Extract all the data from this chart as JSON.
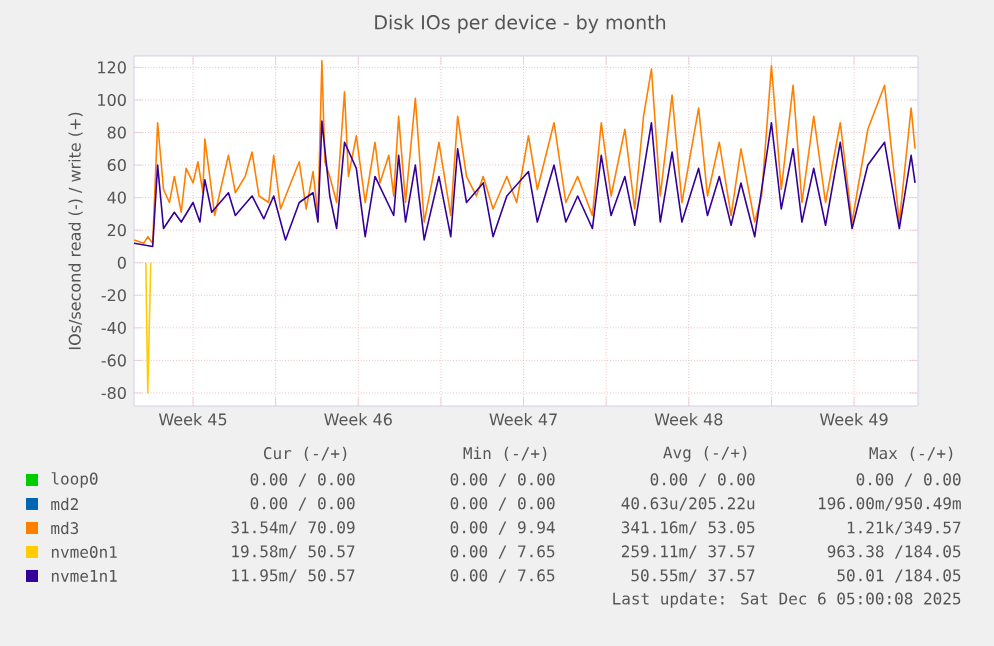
{
  "chart_data": {
    "type": "line",
    "title": "Disk IOs per device - by month",
    "ylabel": "IOs/second read (-) / write (+)",
    "xlim": [
      "2025-11-04T00:00",
      "2025-12-07T05:00"
    ],
    "ylim": [
      -88,
      127
    ],
    "xticks": [
      {
        "value": "2025-11-06T12:00",
        "label": "Week 45"
      },
      {
        "value": "2025-11-10",
        "label": null
      },
      {
        "value": "2025-11-13T12:00",
        "label": "Week 46"
      },
      {
        "value": "2025-11-17",
        "label": null
      },
      {
        "value": "2025-11-20T12:00",
        "label": "Week 47"
      },
      {
        "value": "2025-11-24",
        "label": null
      },
      {
        "value": "2025-11-27T12:00",
        "label": "Week 48"
      },
      {
        "value": "2025-12-01",
        "label": null
      },
      {
        "value": "2025-12-04T12:00",
        "label": "Week 49"
      }
    ],
    "yticks": [
      -80,
      -60,
      -40,
      -20,
      0,
      20,
      40,
      60,
      80,
      100,
      120
    ],
    "grid": true,
    "legend": "bottom",
    "series": [
      {
        "name": "loop0",
        "color": "#00cc00"
      },
      {
        "name": "md2",
        "color": "#0066b3"
      },
      {
        "name": "md3",
        "color": "#ff8000",
        "x": [
          "2025-11-04T00:00",
          "2025-11-04T10:00",
          "2025-11-04T14:00",
          "2025-11-04T19:00",
          "2025-11-05T00:00",
          "2025-11-05T06:00",
          "2025-11-05T12:00",
          "2025-11-05T17:00",
          "2025-11-06T00:00",
          "2025-11-06T05:00",
          "2025-11-06T12:00",
          "2025-11-06T17:00",
          "2025-11-06T22:00",
          "2025-11-07T00:00",
          "2025-11-07T05:00",
          "2025-11-07T10:00",
          "2025-11-07T16:00",
          "2025-11-08T00:00",
          "2025-11-08T07:00",
          "2025-11-08T17:00",
          "2025-11-09T00:00",
          "2025-11-09T07:00",
          "2025-11-09T17:00",
          "2025-11-09T22:00",
          "2025-11-10T05:00",
          "2025-11-10T14:00",
          "2025-11-11T00:00",
          "2025-11-11T07:00",
          "2025-11-11T14:00",
          "2025-11-11T19:00",
          "2025-11-11T23:00",
          "2025-11-12T02:00",
          "2025-11-12T07:00",
          "2025-11-12T14:00",
          "2025-11-12T22:00",
          "2025-11-13T02:00",
          "2025-11-13T10:00",
          "2025-11-13T19:00",
          "2025-11-14T05:00",
          "2025-11-14T10:00",
          "2025-11-14T19:00",
          "2025-11-15T00:00",
          "2025-11-15T05:00",
          "2025-11-15T12:00",
          "2025-11-15T22:00",
          "2025-11-16T07:00",
          "2025-11-16T16:00",
          "2025-11-16T22:00",
          "2025-11-17T10:00",
          "2025-11-17T17:00",
          "2025-11-18T02:00",
          "2025-11-18T12:00",
          "2025-11-18T19:00",
          "2025-11-19T05:00",
          "2025-11-19T19:00",
          "2025-11-20T05:00",
          "2025-11-20T17:00",
          "2025-11-21T02:00",
          "2025-11-21T19:00",
          "2025-11-22T07:00",
          "2025-11-22T19:00",
          "2025-11-23T10:00",
          "2025-11-23T19:00",
          "2025-11-24T05:00",
          "2025-11-24T19:00",
          "2025-11-25T05:00",
          "2025-11-25T14:00",
          "2025-11-25T22:00",
          "2025-11-26T07:00",
          "2025-11-26T19:00",
          "2025-11-27T05:00",
          "2025-11-27T22:00",
          "2025-11-28T07:00",
          "2025-11-28T19:00",
          "2025-11-29T07:00",
          "2025-11-29T17:00",
          "2025-11-30T07:00",
          "2025-11-30T14:00",
          "2025-12-01T00:00",
          "2025-12-01T10:00",
          "2025-12-01T22:00",
          "2025-12-02T07:00",
          "2025-12-02T19:00",
          "2025-12-03T07:00",
          "2025-12-03T22:00",
          "2025-12-04T10:00",
          "2025-12-05T02:00",
          "2025-12-05T19:00",
          "2025-12-06T10:00",
          "2025-12-06T22:00",
          "2025-12-07T02:00"
        ],
        "values": [
          14,
          12,
          16,
          12,
          86,
          45,
          37,
          53,
          31,
          58,
          49,
          62,
          43,
          76,
          53,
          29,
          45,
          66,
          43,
          53,
          68,
          41,
          37,
          66,
          33,
          47,
          62,
          33,
          56,
          29,
          124,
          62,
          53,
          37,
          105,
          53,
          78,
          37,
          74,
          49,
          66,
          41,
          90,
          37,
          101,
          25,
          53,
          74,
          29,
          90,
          53,
          41,
          53,
          33,
          53,
          37,
          78,
          45,
          86,
          37,
          53,
          29,
          86,
          41,
          82,
          33,
          90,
          119,
          41,
          103,
          37,
          95,
          41,
          74,
          29,
          70,
          25,
          41,
          121,
          45,
          109,
          37,
          90,
          37,
          86,
          25,
          82,
          109,
          25,
          95,
          70
        ]
      },
      {
        "name": "nvme0n1",
        "color": "#ffcc00",
        "x": [
          "2025-11-04T12:00",
          "2025-11-04T14:00",
          "2025-11-04T17:00"
        ],
        "values": [
          0,
          -80,
          0
        ]
      },
      {
        "name": "nvme1n1",
        "color": "#330099",
        "x": [
          "2025-11-04T00:00",
          "2025-11-04T19:00",
          "2025-11-05T00:00",
          "2025-11-05T06:00",
          "2025-11-05T17:00",
          "2025-11-06T00:00",
          "2025-11-06T12:00",
          "2025-11-06T19:00",
          "2025-11-07T00:00",
          "2025-11-07T07:00",
          "2025-11-08T00:00",
          "2025-11-08T07:00",
          "2025-11-09T00:00",
          "2025-11-09T12:00",
          "2025-11-09T22:00",
          "2025-11-10T10:00",
          "2025-11-11T00:00",
          "2025-11-11T14:00",
          "2025-11-11T19:00",
          "2025-11-11T23:00",
          "2025-11-12T07:00",
          "2025-11-12T14:00",
          "2025-11-12T22:00",
          "2025-11-13T10:00",
          "2025-11-13T19:00",
          "2025-11-14T05:00",
          "2025-11-15T00:00",
          "2025-11-15T05:00",
          "2025-11-15T12:00",
          "2025-11-15T22:00",
          "2025-11-16T07:00",
          "2025-11-16T22:00",
          "2025-11-17T10:00",
          "2025-11-17T17:00",
          "2025-11-18T02:00",
          "2025-11-18T19:00",
          "2025-11-19T05:00",
          "2025-11-19T19:00",
          "2025-11-20T17:00",
          "2025-11-21T02:00",
          "2025-11-21T19:00",
          "2025-11-22T07:00",
          "2025-11-22T19:00",
          "2025-11-23T10:00",
          "2025-11-23T19:00",
          "2025-11-24T05:00",
          "2025-11-24T19:00",
          "2025-11-25T05:00",
          "2025-11-25T22:00",
          "2025-11-26T07:00",
          "2025-11-26T19:00",
          "2025-11-27T05:00",
          "2025-11-27T22:00",
          "2025-11-28T07:00",
          "2025-11-28T19:00",
          "2025-11-29T07:00",
          "2025-11-29T17:00",
          "2025-11-30T07:00",
          "2025-12-01T00:00",
          "2025-12-01T10:00",
          "2025-12-01T22:00",
          "2025-12-02T07:00",
          "2025-12-02T19:00",
          "2025-12-03T07:00",
          "2025-12-03T22:00",
          "2025-12-04T10:00",
          "2025-12-05T02:00",
          "2025-12-05T19:00",
          "2025-12-06T10:00",
          "2025-12-06T22:00",
          "2025-12-07T02:00"
        ],
        "values": [
          12,
          10,
          60,
          21,
          31,
          25,
          37,
          25,
          51,
          31,
          43,
          29,
          41,
          27,
          41,
          14,
          37,
          43,
          25,
          87,
          41,
          21,
          74,
          58,
          16,
          53,
          29,
          66,
          25,
          60,
          14,
          53,
          16,
          70,
          37,
          49,
          16,
          41,
          56,
          25,
          60,
          25,
          41,
          21,
          66,
          29,
          53,
          23,
          86,
          25,
          68,
          25,
          58,
          29,
          53,
          23,
          49,
          16,
          86,
          33,
          70,
          25,
          58,
          23,
          74,
          21,
          60,
          74,
          21,
          66,
          49
        ]
      }
    ],
    "annotations": [
      "Cur (-/+)",
      "Min (-/+)",
      "Avg (-/+)",
      "Max (-/+)",
      "0.00 / 0.00",
      "0.00 / 0.00",
      "0.00 / 0.00",
      "0.00 / 0.00",
      "0.00 / 0.00",
      "0.00 / 0.00",
      "40.63u/205.22u",
      "196.00m/950.49m",
      "31.54m/ 70.09",
      "0.00 / 9.94",
      "341.16m/ 53.05",
      "1.21k/349.57",
      "19.58m/ 50.57",
      "0.00 / 7.65",
      "259.11m/ 37.57",
      "963.38 /184.05",
      "11.95m/ 50.57",
      "0.00 / 7.65",
      "50.55m/ 37.57",
      "50.01 /184.05",
      "Last update: Sat Dec 6 05:00:08 2025"
    ]
  }
}
